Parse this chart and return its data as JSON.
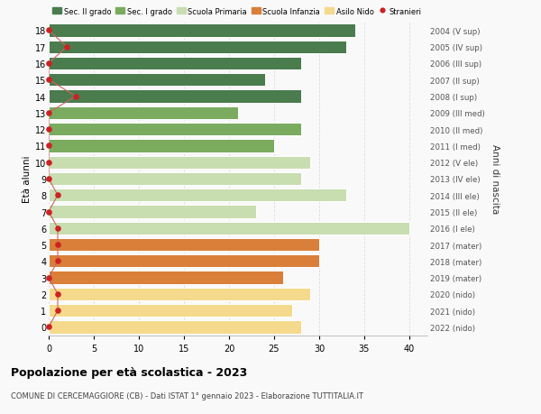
{
  "ages": [
    0,
    1,
    2,
    3,
    4,
    5,
    6,
    7,
    8,
    9,
    10,
    11,
    12,
    13,
    14,
    15,
    16,
    17,
    18
  ],
  "bar_values": [
    28,
    27,
    29,
    26,
    30,
    30,
    40,
    23,
    33,
    28,
    29,
    25,
    28,
    21,
    28,
    24,
    28,
    33,
    34
  ],
  "stranieri_values": [
    0,
    1,
    1,
    0,
    1,
    1,
    1,
    0,
    1,
    0,
    0,
    0,
    0,
    0,
    3,
    0,
    0,
    2,
    0
  ],
  "bar_colors": [
    "#f5d98c",
    "#f5d98c",
    "#f5d98c",
    "#d97f3a",
    "#d97f3a",
    "#d97f3a",
    "#c8ddb0",
    "#c8ddb0",
    "#c8ddb0",
    "#c8ddb0",
    "#c8ddb0",
    "#7aab5e",
    "#7aab5e",
    "#7aab5e",
    "#4a7c4e",
    "#4a7c4e",
    "#4a7c4e",
    "#4a7c4e",
    "#4a7c4e"
  ],
  "right_labels": [
    "2022 (nido)",
    "2021 (nido)",
    "2020 (nido)",
    "2019 (mater)",
    "2018 (mater)",
    "2017 (mater)",
    "2016 (I ele)",
    "2015 (II ele)",
    "2014 (III ele)",
    "2013 (IV ele)",
    "2012 (V ele)",
    "2011 (I med)",
    "2010 (II med)",
    "2009 (III med)",
    "2008 (I sup)",
    "2007 (II sup)",
    "2006 (III sup)",
    "2005 (IV sup)",
    "2004 (V sup)"
  ],
  "legend_labels": [
    "Sec. II grado",
    "Sec. I grado",
    "Scuola Primaria",
    "Scuola Infanzia",
    "Asilo Nido",
    "Stranieri"
  ],
  "legend_colors": [
    "#4a7c4e",
    "#7aab5e",
    "#c8ddb0",
    "#d97f3a",
    "#f5d98c",
    "#cc2222"
  ],
  "ylabel_left": "Età alunni",
  "ylabel_right": "Anni di nascita",
  "title": "Popolazione per età scolastica - 2023",
  "subtitle": "COMUNE DI CERCEMAGGIORE (CB) - Dati ISTAT 1° gennaio 2023 - Elaborazione TUTTITALIA.IT",
  "xlim": [
    0,
    42
  ],
  "background_color": "#f9f9f9",
  "bar_height": 0.78,
  "grid_color": "#dddddd",
  "stranieri_color": "#cc2222",
  "stranieri_line_color": "#cc6666"
}
